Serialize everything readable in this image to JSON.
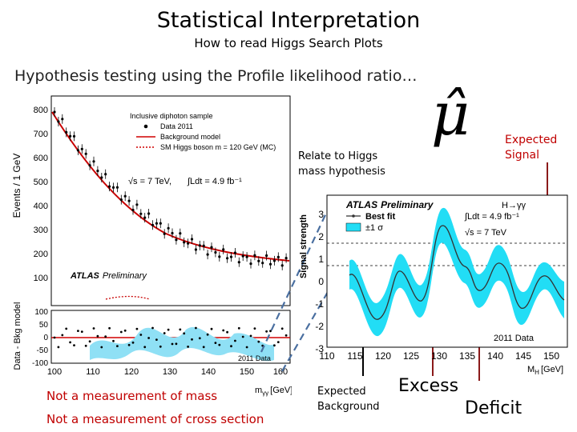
{
  "slide": {
    "title": "Statistical Interpretation",
    "subtitle": "How to read Higgs Search Plots",
    "lead": "Hypothesis testing using the Profile likelihood ratio…",
    "mu_hat_symbol": "μ̂",
    "callouts": {
      "relate_line1": "Relate to Higgs",
      "relate_line2": "mass hypothesis",
      "expected_signal_line1": "Expected",
      "expected_signal_line2": "Signal",
      "expected_background_line1": "Expected",
      "expected_background_line2": "Background",
      "excess": "Excess",
      "deficit": "Deficit"
    },
    "notes": {
      "not_mass": "Not a measurement of mass",
      "not_xsec": "Not a measurement of cross section"
    },
    "colors": {
      "note_red": "#c00000",
      "arrow": "#8b1a1a",
      "band": "#00d0f0",
      "fit": "#d00000"
    }
  },
  "left_plot": {
    "ylabel": "Events / 1 GeV",
    "yticks": [
      "800",
      "700",
      "600",
      "500",
      "400",
      "300",
      "200",
      "100"
    ],
    "legend": {
      "sample": "Inclusive diphoton sample",
      "data": "Data 2011",
      "bkg": "Background model",
      "sm": "SM Higgs boson m",
      "sm_suffix": " = 120 GeV (MC)",
      "sqrt_s": "√s = 7 TeV,",
      "lumi": "∫Ldt = 4.9 fb⁻¹"
    },
    "atlas": "ATLAS",
    "preliminary": "Preliminary",
    "res_ylabel": "Data - Bkg model",
    "res_yticks": [
      "100",
      "50",
      "0",
      "-50",
      "-100"
    ],
    "xticks": [
      "100",
      "110",
      "120",
      "130",
      "140",
      "150",
      "160"
    ],
    "xlabel": "m",
    "xlabel_sub": "γγ",
    "xlabel_unit": "[GeV]",
    "inset_data": "2011 Data"
  },
  "right_plot": {
    "ylabel": "Signal strength",
    "yticks": [
      "3",
      "2",
      "1",
      "0",
      "-1",
      "-2",
      "-3"
    ],
    "atlas": "ATLAS",
    "preliminary": "Preliminary",
    "channel": "H→γγ",
    "legend_fit": "Best fit",
    "legend_band": "±1 σ",
    "lumi": "∫Ldt = 4.9 fb⁻¹",
    "sqrt_s": "√s = 7 TeV",
    "data_label": "2011 Data",
    "xticks": [
      "110",
      "115",
      "120",
      "125",
      "130",
      "135",
      "140",
      "145",
      "150"
    ],
    "xlabel": "M",
    "xlabel_sub": "H",
    "xlabel_unit": "[GeV]"
  }
}
